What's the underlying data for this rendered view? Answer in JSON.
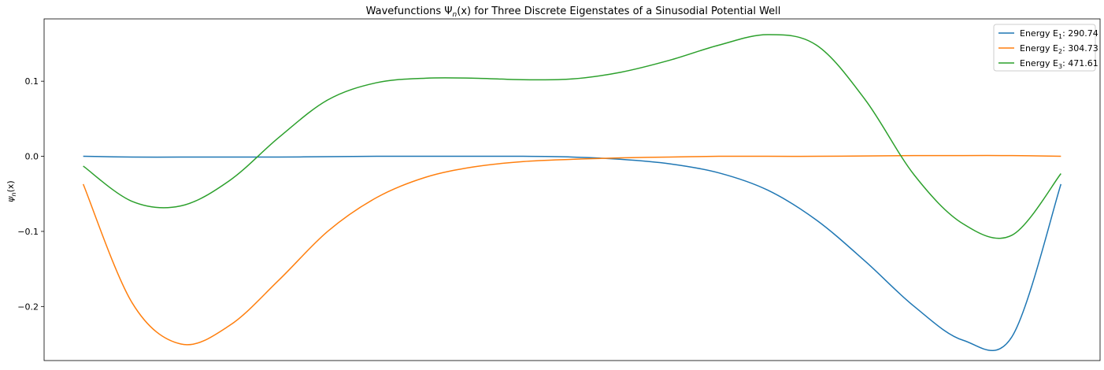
{
  "chart_data": {
    "type": "line",
    "title": "Wavefunctions Ψ_n(x) for Three Discrete Eigenstates of a Sinusodial Potential Well",
    "title_parts": {
      "prefix": "Wavefunctions Ψ",
      "subscript": "n",
      "suffix": "(x) for Three Discrete Eigenstates of a Sinusodial Potential Well"
    },
    "xlabel": "",
    "ylabel": "ψ_n(x)",
    "ylabel_parts": {
      "symbol": "ψ",
      "subscript": "n",
      "suffix": "(x)"
    },
    "xlim": [
      -0.04,
      1.04
    ],
    "ylim": [
      -0.272,
      0.183
    ],
    "x_ticks_visible": false,
    "y_ticks": [
      -0.2,
      -0.1,
      0.0,
      0.1
    ],
    "y_tick_labels": [
      "−0.2",
      "−0.1",
      "0.0",
      "0.1"
    ],
    "grid": false,
    "legend_position": "top-right",
    "x": [
      0,
      0.05,
      0.1,
      0.15,
      0.2,
      0.25,
      0.3,
      0.35,
      0.4,
      0.45,
      0.5,
      0.55,
      0.6,
      0.65,
      0.7,
      0.75,
      0.8,
      0.85,
      0.9,
      0.95,
      1.0
    ],
    "series": [
      {
        "name": "Energy E_1: 290.74",
        "legend_prefix": "Energy E",
        "legend_sub": "1",
        "legend_suffix": ": 290.74",
        "color": "#1f77b4",
        "values": [
          0.0,
          -0.001,
          -0.001,
          -0.001,
          -0.001,
          -0.0005,
          0.0,
          0.0,
          0.0,
          0.0,
          -0.001,
          -0.004,
          -0.01,
          -0.022,
          -0.045,
          -0.085,
          -0.14,
          -0.2,
          -0.245,
          -0.24,
          -0.037
        ]
      },
      {
        "name": "Energy E_2: 304.73",
        "legend_prefix": "Energy E",
        "legend_sub": "2",
        "legend_suffix": ": 304.73",
        "color": "#ff7f0e",
        "values": [
          -0.037,
          -0.195,
          -0.25,
          -0.225,
          -0.165,
          -0.1,
          -0.055,
          -0.028,
          -0.014,
          -0.007,
          -0.004,
          -0.002,
          -0.001,
          0.0,
          0.0,
          0.0,
          0.0005,
          0.001,
          0.001,
          0.001,
          0.0
        ]
      },
      {
        "name": "Energy E_3: 471.61",
        "legend_prefix": "Energy E",
        "legend_sub": "3",
        "legend_suffix": ": 471.61",
        "color": "#2ca02c",
        "values": [
          -0.013,
          -0.06,
          -0.066,
          -0.032,
          0.025,
          0.075,
          0.098,
          0.104,
          0.104,
          0.102,
          0.103,
          0.112,
          0.128,
          0.148,
          0.162,
          0.148,
          0.075,
          -0.025,
          -0.09,
          -0.105,
          -0.023
        ]
      }
    ]
  }
}
